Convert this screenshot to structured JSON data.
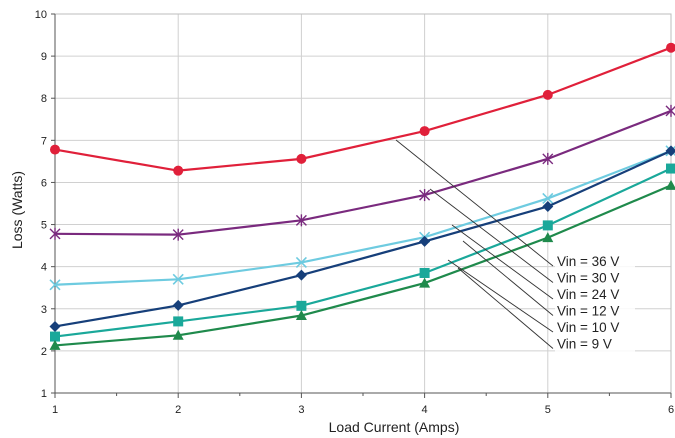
{
  "chart_data": {
    "type": "line",
    "title": "",
    "xlabel": "Load Current (Amps)",
    "ylabel": "Loss (Watts)",
    "x": [
      1,
      2,
      3,
      4,
      5,
      6
    ],
    "xlim": [
      1,
      6
    ],
    "ylim": [
      1,
      10
    ],
    "x_ticks": [
      "1",
      "2",
      "3",
      "4",
      "5",
      "6"
    ],
    "y_ticks": [
      "1",
      "2",
      "3",
      "4",
      "5",
      "6",
      "7",
      "8",
      "9",
      "10"
    ],
    "grid": true,
    "legend_placement": "right, callout labels with leader lines",
    "series": [
      {
        "name": "Vin = 36 V",
        "color": "#e0203a",
        "marker": "circle",
        "values": [
          6.78,
          6.28,
          6.56,
          7.22,
          8.08,
          9.2
        ]
      },
      {
        "name": "Vin = 30 V",
        "color": "#7a2a7e",
        "marker": "asterisk",
        "values": [
          4.78,
          4.76,
          5.1,
          5.7,
          6.56,
          7.7
        ]
      },
      {
        "name": "Vin = 24 V",
        "color": "#6ecbe0",
        "marker": "x",
        "values": [
          3.57,
          3.7,
          4.1,
          4.7,
          5.62,
          6.75
        ]
      },
      {
        "name": "Vin = 12 V",
        "color": "#163f7a",
        "marker": "diamond",
        "values": [
          2.58,
          3.08,
          3.8,
          4.6,
          5.43,
          6.75
        ]
      },
      {
        "name": "Vin = 10 V",
        "color": "#1aa89a",
        "marker": "square",
        "values": [
          2.34,
          2.7,
          3.07,
          3.85,
          4.98,
          6.33
        ]
      },
      {
        "name": "Vin = 9 V",
        "color": "#1f8a4c",
        "marker": "triangle",
        "values": [
          2.13,
          2.37,
          2.84,
          3.61,
          4.69,
          5.93
        ]
      }
    ]
  }
}
